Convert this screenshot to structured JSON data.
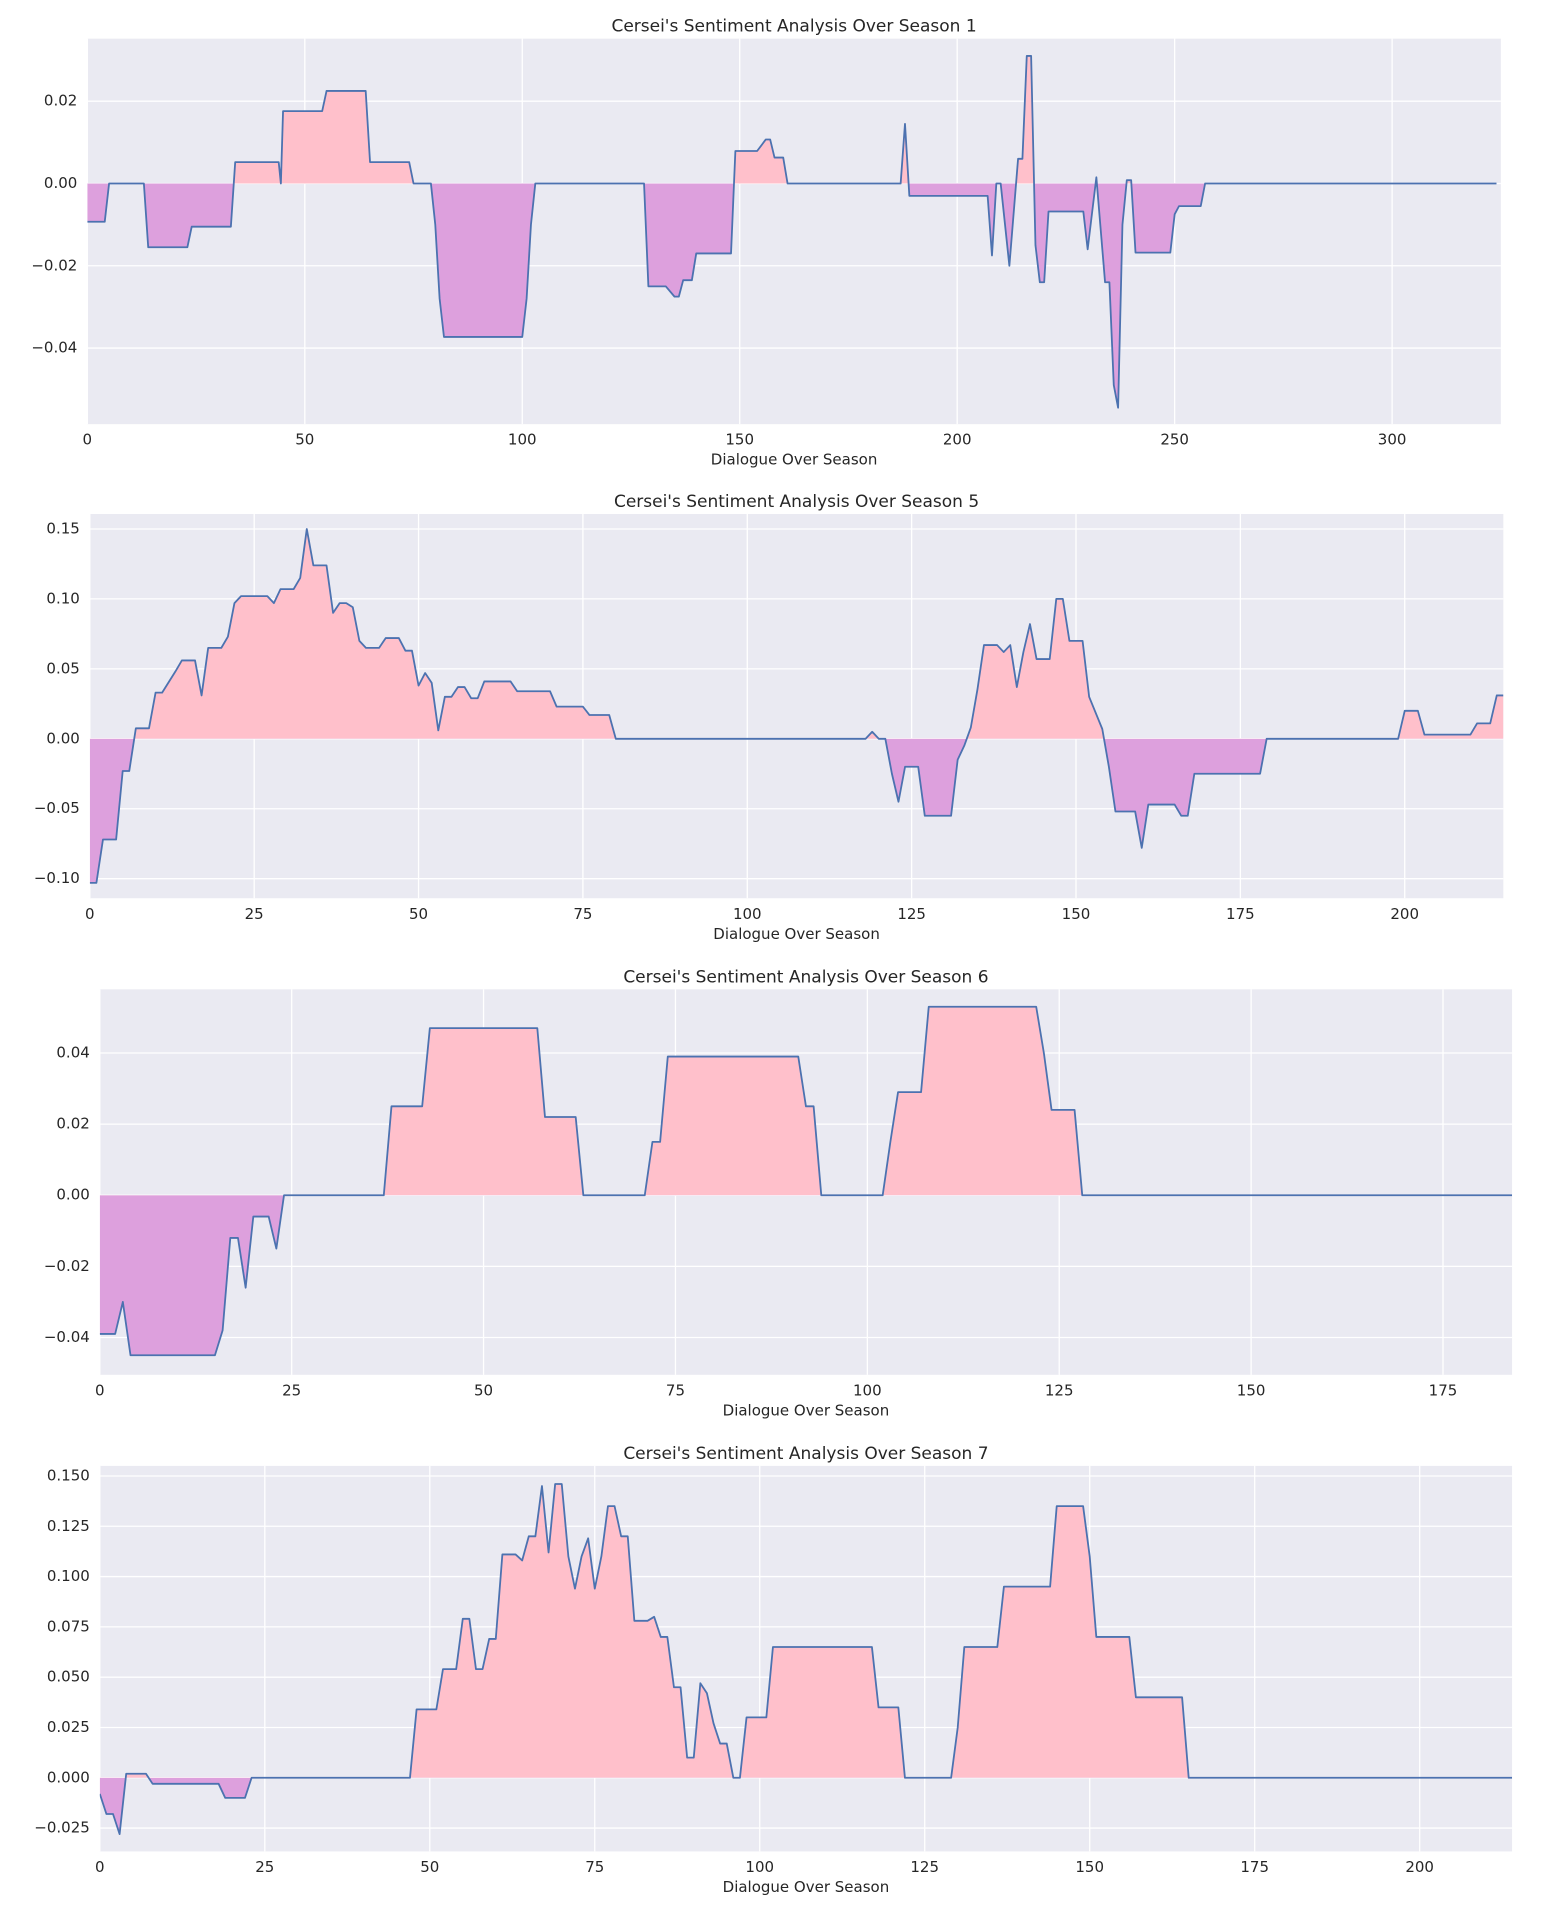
{
  "chart_data": [
    {
      "type": "line",
      "title": "Cersei's Sentiment Analysis Over Season 1",
      "xlabel": "Dialogue Over Season",
      "x": [
        0,
        4,
        5,
        13,
        14,
        23,
        24,
        33,
        34,
        44,
        44.5,
        45,
        54,
        55,
        64,
        65,
        74,
        75,
        79,
        80,
        81,
        82,
        100,
        101,
        102,
        103,
        128,
        129,
        133,
        135,
        136,
        137,
        139,
        140,
        148,
        149,
        154,
        156,
        157,
        158,
        160,
        161,
        187,
        188,
        189,
        207,
        208,
        209,
        210,
        212,
        214,
        215,
        216,
        217,
        218,
        219,
        220,
        221,
        229,
        230,
        232,
        234,
        235,
        236,
        237,
        238,
        239,
        240,
        241,
        249,
        250,
        251,
        256,
        257,
        324
      ],
      "values": [
        -0.0093,
        -0.0093,
        0,
        0,
        -0.0155,
        -0.0155,
        -0.0105,
        -0.0105,
        0.0052,
        0.0052,
        0,
        0.0176,
        0.0176,
        0.0225,
        0.0225,
        0.0052,
        0.0052,
        0,
        0,
        -0.01,
        -0.028,
        -0.0373,
        -0.0373,
        -0.028,
        -0.01,
        0,
        0,
        -0.025,
        -0.025,
        -0.0275,
        -0.0275,
        -0.0235,
        -0.0235,
        -0.017,
        -0.017,
        0.0079,
        0.0079,
        0.0107,
        0.0107,
        0.0063,
        0.0063,
        0,
        0,
        0.0145,
        -0.003,
        -0.003,
        -0.0175,
        0,
        0,
        -0.02,
        0.006,
        0.006,
        0.031,
        0.031,
        -0.015,
        -0.024,
        -0.024,
        -0.0068,
        -0.0068,
        -0.016,
        0.0015,
        -0.024,
        -0.024,
        -0.049,
        -0.0545,
        -0.01,
        0.0008,
        0.0008,
        -0.0168,
        -0.0168,
        -0.0075,
        -0.0055,
        -0.0055,
        0,
        0
      ],
      "line_color": "#4c72b0",
      "fill_positive_color": "#ffc0cb",
      "fill_negative_color": "#dda0dd",
      "xlim": [
        0,
        325
      ],
      "ylim": [
        -0.0585,
        0.0352
      ],
      "xticks": [
        0,
        50,
        100,
        150,
        200,
        250,
        300
      ],
      "yticks": [
        {
          "value": -0.04,
          "label": "−0.04"
        },
        {
          "value": -0.02,
          "label": "−0.02"
        },
        {
          "value": 0,
          "label": "0.00"
        },
        {
          "value": 0.02,
          "label": "0.02"
        }
      ],
      "grid": true
    },
    {
      "type": "line",
      "title": "Cersei's Sentiment Analysis Over Season 5",
      "xlabel": "Dialogue Over Season",
      "x": [
        0,
        1,
        2,
        4,
        5,
        6,
        7,
        9,
        10,
        11,
        13,
        14,
        16,
        17,
        18,
        20,
        21,
        22,
        23,
        27,
        28,
        29,
        31,
        32,
        33,
        34,
        36,
        37,
        38,
        39,
        40,
        41,
        42,
        44,
        45,
        47,
        48,
        49,
        50,
        51,
        52,
        53,
        54,
        55,
        56,
        57,
        58,
        59,
        60,
        64,
        65,
        70,
        71,
        75,
        76,
        79,
        80,
        118,
        119,
        120,
        121,
        122,
        123,
        124,
        126,
        127,
        131,
        132,
        133,
        134,
        135,
        136,
        138,
        139,
        140,
        141,
        142,
        143,
        144,
        146,
        147,
        148,
        149,
        151,
        152,
        154,
        155,
        156,
        159,
        160,
        161,
        165,
        166,
        167,
        168,
        178,
        179,
        199,
        200,
        202,
        203,
        210,
        211,
        213,
        214,
        215
      ],
      "values": [
        -0.103,
        -0.103,
        -0.072,
        -0.072,
        -0.023,
        -0.023,
        0.0075,
        0.0075,
        0.033,
        0.033,
        0.048,
        0.056,
        0.056,
        0.031,
        0.065,
        0.065,
        0.073,
        0.097,
        0.102,
        0.102,
        0.097,
        0.107,
        0.107,
        0.115,
        0.15,
        0.124,
        0.124,
        0.09,
        0.097,
        0.097,
        0.094,
        0.07,
        0.065,
        0.065,
        0.072,
        0.072,
        0.063,
        0.063,
        0.038,
        0.047,
        0.04,
        0.006,
        0.03,
        0.03,
        0.037,
        0.037,
        0.029,
        0.029,
        0.041,
        0.041,
        0.034,
        0.034,
        0.023,
        0.023,
        0.017,
        0.017,
        0,
        0,
        0.005,
        0,
        0,
        -0.025,
        -0.045,
        -0.02,
        -0.02,
        -0.055,
        -0.055,
        -0.015,
        -0.005,
        0.008,
        0.035,
        0.067,
        0.067,
        0.062,
        0.067,
        0.037,
        0.062,
        0.082,
        0.057,
        0.057,
        0.1,
        0.1,
        0.07,
        0.07,
        0.03,
        0.007,
        -0.02,
        -0.052,
        -0.052,
        -0.078,
        -0.047,
        -0.047,
        -0.055,
        -0.055,
        -0.025,
        -0.025,
        0,
        0,
        0.02,
        0.02,
        0.003,
        0.003,
        0.011,
        0.011,
        0.031,
        0.031
      ],
      "line_color": "#4c72b0",
      "fill_positive_color": "#ffc0cb",
      "fill_negative_color": "#dda0dd",
      "xlim": [
        0,
        215
      ],
      "ylim": [
        -0.114,
        0.1607
      ],
      "xticks": [
        0,
        25,
        50,
        75,
        100,
        125,
        150,
        175,
        200
      ],
      "yticks": [
        {
          "value": -0.1,
          "label": "−0.10"
        },
        {
          "value": -0.05,
          "label": "−0.05"
        },
        {
          "value": 0,
          "label": "0.00"
        },
        {
          "value": 0.05,
          "label": "0.05"
        },
        {
          "value": 0.1,
          "label": "0.10"
        },
        {
          "value": 0.15,
          "label": "0.15"
        }
      ],
      "grid": true
    },
    {
      "type": "line",
      "title": "Cersei's Sentiment Analysis Over Season 6",
      "xlabel": "Dialogue Over Season",
      "x": [
        0,
        2,
        3,
        4,
        15,
        16,
        17,
        18,
        19,
        20,
        22,
        23,
        24,
        37,
        38,
        42,
        43,
        57,
        58,
        62,
        63,
        71,
        72,
        73,
        74,
        91,
        92,
        93,
        94,
        102,
        103,
        104,
        107,
        108,
        122,
        123,
        124,
        127,
        128,
        184
      ],
      "values": [
        -0.039,
        -0.039,
        -0.03,
        -0.045,
        -0.045,
        -0.038,
        -0.012,
        -0.012,
        -0.026,
        -0.006,
        -0.006,
        -0.015,
        0,
        0,
        0.025,
        0.025,
        0.047,
        0.047,
        0.022,
        0.022,
        0,
        0,
        0.015,
        0.015,
        0.039,
        0.039,
        0.025,
        0.025,
        0,
        0,
        0.015,
        0.029,
        0.029,
        0.053,
        0.053,
        0.04,
        0.024,
        0.024,
        0,
        0
      ],
      "line_color": "#4c72b0",
      "fill_positive_color": "#ffc0cb",
      "fill_negative_color": "#dda0dd",
      "xlim": [
        0,
        184
      ],
      "ylim": [
        -0.0505,
        0.0579
      ],
      "xticks": [
        0,
        25,
        50,
        75,
        100,
        125,
        150,
        175
      ],
      "yticks": [
        {
          "value": -0.04,
          "label": "−0.04"
        },
        {
          "value": -0.02,
          "label": "−0.02"
        },
        {
          "value": 0,
          "label": "0.00"
        },
        {
          "value": 0.02,
          "label": "0.02"
        },
        {
          "value": 0.04,
          "label": "0.04"
        }
      ],
      "grid": true
    },
    {
      "type": "line",
      "title": "Cersei's Sentiment Analysis Over Season 7",
      "xlabel": "Dialogue Over Season",
      "x": [
        0,
        1,
        2,
        3,
        4,
        7,
        8,
        18,
        19,
        22,
        23,
        47,
        48,
        51,
        52,
        54,
        55,
        56,
        57,
        58,
        59,
        60,
        61,
        63,
        64,
        65,
        66,
        67,
        68,
        69,
        70,
        71,
        72,
        73,
        74,
        75,
        76,
        77,
        78,
        79,
        80,
        81,
        83,
        84,
        85,
        86,
        87,
        88,
        89,
        90,
        91,
        92,
        93,
        94,
        95,
        96,
        97,
        98,
        101,
        102,
        117,
        118,
        121,
        122,
        129,
        130,
        131,
        136,
        137,
        144,
        145,
        149,
        150,
        151,
        156,
        157,
        164,
        165,
        214
      ],
      "values": [
        -0.008,
        -0.018,
        -0.018,
        -0.028,
        0.002,
        0.002,
        -0.003,
        -0.003,
        -0.01,
        -0.01,
        0,
        0,
        0.034,
        0.034,
        0.054,
        0.054,
        0.079,
        0.079,
        0.054,
        0.054,
        0.069,
        0.069,
        0.111,
        0.111,
        0.108,
        0.12,
        0.12,
        0.145,
        0.112,
        0.146,
        0.146,
        0.11,
        0.094,
        0.11,
        0.119,
        0.094,
        0.11,
        0.135,
        0.135,
        0.12,
        0.12,
        0.078,
        0.078,
        0.08,
        0.07,
        0.07,
        0.045,
        0.045,
        0.01,
        0.01,
        0.047,
        0.042,
        0.027,
        0.017,
        0.017,
        0,
        0,
        0.03,
        0.03,
        0.065,
        0.065,
        0.035,
        0.035,
        0,
        0,
        0.025,
        0.065,
        0.065,
        0.095,
        0.095,
        0.135,
        0.135,
        0.11,
        0.07,
        0.07,
        0.04,
        0.04,
        0,
        0
      ],
      "line_color": "#4c72b0",
      "fill_positive_color": "#ffc0cb",
      "fill_negative_color": "#dda0dd",
      "xlim": [
        0,
        214
      ],
      "ylim": [
        -0.0366,
        0.155
      ],
      "xticks": [
        0,
        25,
        50,
        75,
        100,
        125,
        150,
        175,
        200
      ],
      "yticks": [
        {
          "value": -0.025,
          "label": "−0.025"
        },
        {
          "value": 0,
          "label": "0.000"
        },
        {
          "value": 0.025,
          "label": "0.025"
        },
        {
          "value": 0.05,
          "label": "0.050"
        },
        {
          "value": 0.075,
          "label": "0.075"
        },
        {
          "value": 0.1,
          "label": "0.100"
        },
        {
          "value": 0.125,
          "label": "0.125"
        },
        {
          "value": 0.15,
          "label": "0.150"
        }
      ],
      "grid": true
    }
  ]
}
